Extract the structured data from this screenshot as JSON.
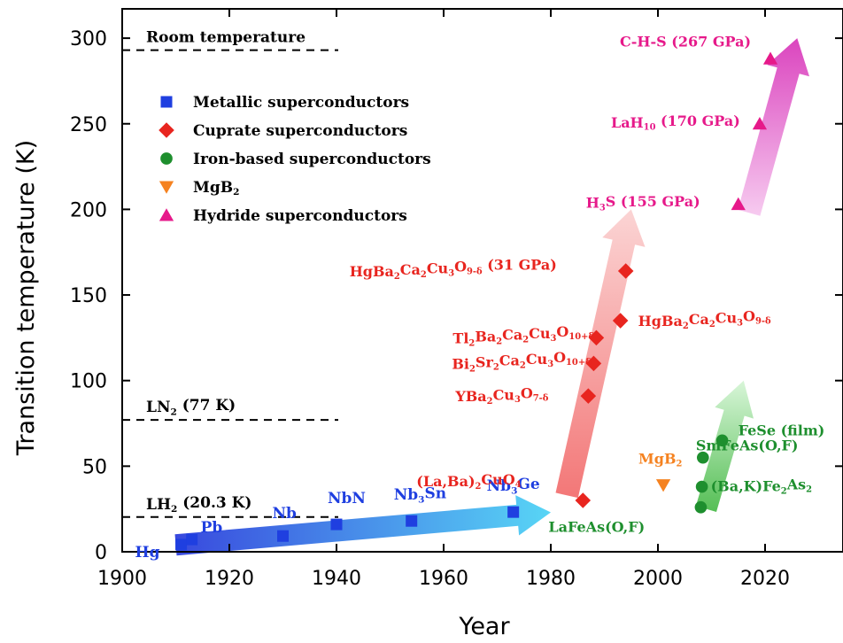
{
  "chart_data": {
    "type": "scatter",
    "xlabel": "Year",
    "ylabel": "Transition temperature (K)",
    "xlim": [
      1900,
      2035
    ],
    "ylim": [
      0,
      310
    ],
    "x_ticks": [
      "1900",
      "1920",
      "1940",
      "1960",
      "1980",
      "2000",
      "2020"
    ],
    "y_ticks": [
      "0",
      "50",
      "100",
      "150",
      "200",
      "250",
      "300"
    ],
    "reference_lines": [
      {
        "label": "Room temperature",
        "y": 293
      },
      {
        "label": "LN₂ (77 K)",
        "y": 77
      },
      {
        "label": "LH₂ (20.3 K)",
        "y": 20.3
      }
    ],
    "legend_position": "top-left",
    "series": [
      {
        "name": "Metallic superconductors",
        "marker": "square",
        "color": "#1f3fe0",
        "points": [
          {
            "x": 1911,
            "y": 4.2,
            "label": "Hg"
          },
          {
            "x": 1913,
            "y": 7.2,
            "label": "Pb"
          },
          {
            "x": 1930,
            "y": 9.2,
            "label": "Nb"
          },
          {
            "x": 1940,
            "y": 16,
            "label": "NbN"
          },
          {
            "x": 1954,
            "y": 18,
            "label": "Nb₃Sn"
          },
          {
            "x": 1973,
            "y": 23.2,
            "label": "Nb₃Ge"
          }
        ]
      },
      {
        "name": "Cuprate superconductors",
        "marker": "diamond",
        "color": "#e8251f",
        "points": [
          {
            "x": 1986,
            "y": 30,
            "label": "(La,Ba)₂CuO₄"
          },
          {
            "x": 1987,
            "y": 91,
            "label": "YBa₂Cu₃O₇₋δ"
          },
          {
            "x": 1988,
            "y": 110,
            "label": "Bi₂Sr₂Ca₂Cu₃O₁₀₊δ"
          },
          {
            "x": 1988.5,
            "y": 125,
            "label": "Tl₂Ba₂Ca₂Cu₃O₁₀₊δ"
          },
          {
            "x": 1993,
            "y": 135,
            "label": "HgBa₂Ca₂Cu₃O₉₋δ"
          },
          {
            "x": 1994,
            "y": 164,
            "label": "HgBa₂Ca₂Cu₃O₉₋δ (31 GPa)"
          }
        ]
      },
      {
        "name": "Iron-based superconductors",
        "marker": "circle",
        "color": "#1e8f2e",
        "points": [
          {
            "x": 2008,
            "y": 26,
            "label": "LaFeAs(O,F)"
          },
          {
            "x": 2008.2,
            "y": 38,
            "label": "(Ba,K)Fe₂As₂"
          },
          {
            "x": 2008.4,
            "y": 55,
            "label": "SmFeAs(O,F)"
          },
          {
            "x": 2012,
            "y": 65,
            "label": "FeSe (film)"
          }
        ]
      },
      {
        "name": "MgB₂",
        "marker": "triangle-down",
        "color": "#f58220",
        "points": [
          {
            "x": 2001,
            "y": 39,
            "label": "MgB₂"
          }
        ]
      },
      {
        "name": "Hydride superconductors",
        "marker": "triangle-up",
        "color": "#e6198a",
        "points": [
          {
            "x": 2015,
            "y": 203,
            "label": "H₃S (155 GPa)"
          },
          {
            "x": 2019,
            "y": 250,
            "label": "LaH₁₀ (170 GPa)"
          },
          {
            "x": 2021,
            "y": 288,
            "label": "C-H-S (267 GPa)"
          }
        ]
      }
    ],
    "trend_arrows": [
      {
        "color": "#3f7fe0",
        "from": [
          1910,
          4
        ],
        "to": [
          1980,
          23
        ]
      },
      {
        "color": "#f08080",
        "from": [
          1983,
          33
        ],
        "to": [
          1995,
          200
        ]
      },
      {
        "color": "#6ccf6c",
        "from": [
          2009,
          25
        ],
        "to": [
          2016,
          100
        ]
      },
      {
        "color": "#e88fd6",
        "from": [
          2017,
          198
        ],
        "to": [
          2026,
          300
        ]
      }
    ]
  }
}
